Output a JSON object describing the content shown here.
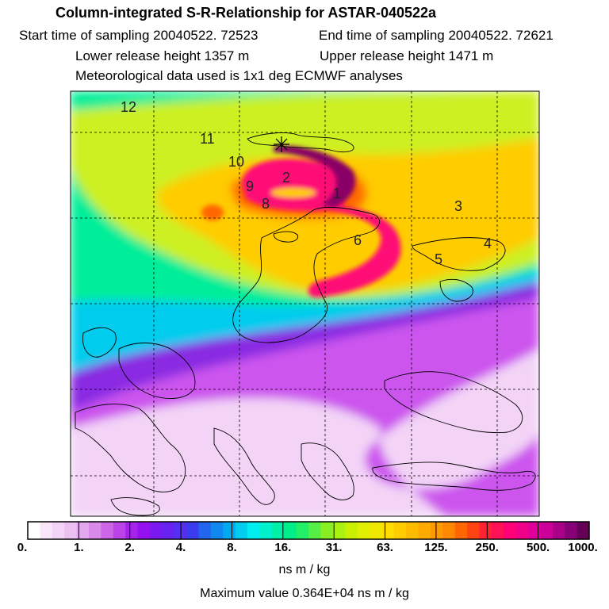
{
  "header": {
    "title": "Column-integrated S-R-Relationship for ASTAR-040522a",
    "start_time_label": "Start time of sampling 20040522. 72523",
    "end_time_label": "End time of sampling 20040522. 72621",
    "lower_height_label": "Lower release height 1357 m",
    "upper_height_label": "Upper release height 1471 m",
    "met_data_label": "Meteorological data used is 1x1 deg ECMWF analyses"
  },
  "map": {
    "time_markers": [
      "12",
      "11",
      "10",
      "9",
      "8",
      "2",
      "1",
      "3",
      "4",
      "5",
      "6"
    ],
    "colors": {
      "lt1": "#f3d4f7",
      "p1_2": "#cc55ee",
      "p2_4": "#8a2be2",
      "p4_8": "#2233ee",
      "p8_16": "#00ccee",
      "p16_31": "#00ee99",
      "p31_63": "#ccf020",
      "p63_125": "#ffcc00",
      "p125_250": "#ff6600",
      "p250_500": "#ff1177",
      "p500_1000": "#880066"
    }
  },
  "colorbar": {
    "labels": [
      "0.",
      "1.",
      "2.",
      "4.",
      "8.",
      "16.",
      "31.",
      "63.",
      "125.",
      "250.",
      "500.",
      "1000."
    ],
    "colors": [
      "#ffffff",
      "#f9e6fb",
      "#f3d4f7",
      "#ecc0f3",
      "#e3a8ee",
      "#d88ae8",
      "#cc66e6",
      "#bb44e8",
      "#a822ee",
      "#9511f0",
      "#7a1af0",
      "#6622f0",
      "#5530f0",
      "#3b3cf0",
      "#2266f0",
      "#1188f0",
      "#00aaf0",
      "#00ccf0",
      "#00eeee",
      "#00f0cc",
      "#00f0a8",
      "#00ee88",
      "#22ee66",
      "#55ee44",
      "#88f022",
      "#aaf011",
      "#c8f000",
      "#e0f000",
      "#f0e800",
      "#ffdd00",
      "#ffcc00",
      "#ffbb00",
      "#ffaa00",
      "#ff9900",
      "#ff8800",
      "#ff6600",
      "#ff4411",
      "#ff2233",
      "#ff1155",
      "#ff0077",
      "#f00088",
      "#e00099",
      "#cc0099",
      "#aa0088",
      "#880077",
      "#660055"
    ],
    "units": "ns m / kg",
    "max_value_text": "Maximum value  0.364E+04 ns m / kg"
  }
}
